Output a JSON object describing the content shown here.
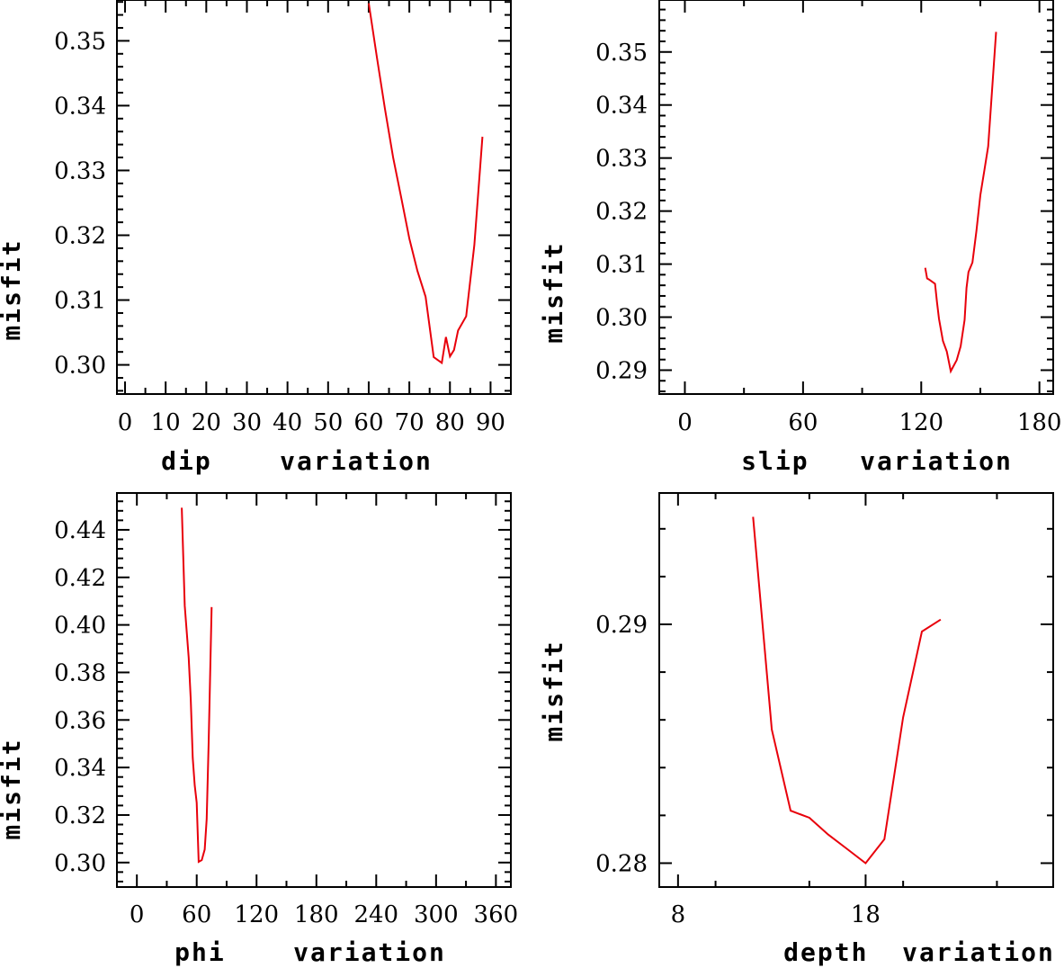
{
  "chart_data": [
    {
      "type": "line",
      "xlabel": "dip    variation",
      "ylabel": "misfit",
      "xlim": [
        -2,
        95
      ],
      "ylim": [
        0.2955,
        0.3563
      ],
      "xticks": [
        0,
        10,
        20,
        30,
        40,
        50,
        60,
        70,
        80,
        90
      ],
      "yticks": [
        0.3,
        0.31,
        0.32,
        0.33,
        0.34,
        0.35
      ],
      "ytick_labels": [
        "0.30",
        "0.31",
        "0.32",
        "0.33",
        "0.34",
        "0.35"
      ],
      "series": [
        {
          "name": "misfit",
          "color": "#e8000b",
          "x": [
            60,
            62,
            64,
            66,
            68,
            70,
            72,
            74,
            76,
            78,
            79,
            80,
            81,
            82,
            84,
            86,
            88
          ],
          "y": [
            0.3558,
            0.3475,
            0.3395,
            0.332,
            0.3258,
            0.3195,
            0.3145,
            0.3105,
            0.3012,
            0.3003,
            0.3043,
            0.3013,
            0.3023,
            0.3053,
            0.3075,
            0.3185,
            0.3352
          ]
        }
      ]
    },
    {
      "type": "line",
      "xlabel": "slip   variation",
      "ylabel": "misfit",
      "xlim": [
        -13,
        187
      ],
      "ylim": [
        0.2855,
        0.3598
      ],
      "xticks": [
        0,
        60,
        120,
        180
      ],
      "yticks": [
        0.29,
        0.3,
        0.31,
        0.32,
        0.33,
        0.34,
        0.35
      ],
      "ytick_labels": [
        "0.29",
        "0.30",
        "0.31",
        "0.32",
        "0.33",
        "0.34",
        "0.35"
      ],
      "series": [
        {
          "name": "misfit",
          "color": "#e8000b",
          "x": [
            122,
            123,
            124,
            127,
            128,
            129,
            131,
            133,
            135,
            136,
            138,
            140,
            142,
            143,
            144,
            146,
            148,
            150,
            152,
            154,
            158
          ],
          "y": [
            0.3093,
            0.3073,
            0.3071,
            0.3063,
            0.3028,
            0.2997,
            0.2955,
            0.2935,
            0.2898,
            0.2905,
            0.2919,
            0.2945,
            0.2995,
            0.3055,
            0.3085,
            0.3103,
            0.3162,
            0.323,
            0.3275,
            0.3322,
            0.3538
          ]
        }
      ]
    },
    {
      "type": "line",
      "xlabel": "phi    variation",
      "ylabel": "misfit",
      "xlim": [
        -20,
        375
      ],
      "ylim": [
        0.2897,
        0.4555
      ],
      "xticks": [
        0,
        60,
        120,
        180,
        240,
        300,
        360
      ],
      "yticks": [
        0.3,
        0.32,
        0.34,
        0.36,
        0.38,
        0.4,
        0.42,
        0.44
      ],
      "ytick_labels": [
        "0.30",
        "0.32",
        "0.34",
        "0.36",
        "0.38",
        "0.40",
        "0.42",
        "0.44"
      ],
      "series": [
        {
          "name": "misfit",
          "color": "#e8000b",
          "x": [
            45,
            48,
            52,
            54,
            56,
            58,
            60,
            62,
            65,
            68,
            70,
            72,
            75
          ],
          "y": [
            0.4493,
            0.4081,
            0.3862,
            0.3685,
            0.344,
            0.3325,
            0.3252,
            0.3003,
            0.301,
            0.3055,
            0.3183,
            0.3506,
            0.4075
          ]
        }
      ]
    },
    {
      "type": "line",
      "xlabel": "depth  variation",
      "ylabel": "misfit",
      "xlim": [
        7,
        28
      ],
      "ylim": [
        0.279,
        0.2955
      ],
      "xticks": [
        8,
        18
      ],
      "yticks": [
        0.28,
        0.29
      ],
      "ytick_labels": [
        "0.28",
        "0.29"
      ],
      "series": [
        {
          "name": "misfit",
          "color": "#e8000b",
          "x": [
            12,
            13,
            14,
            15,
            16,
            17,
            18,
            19,
            20,
            21,
            22
          ],
          "y": [
            0.2945,
            0.2856,
            0.2822,
            0.2819,
            0.2812,
            0.2806,
            0.28,
            0.281,
            0.2861,
            0.2897,
            0.2902
          ]
        }
      ]
    }
  ]
}
